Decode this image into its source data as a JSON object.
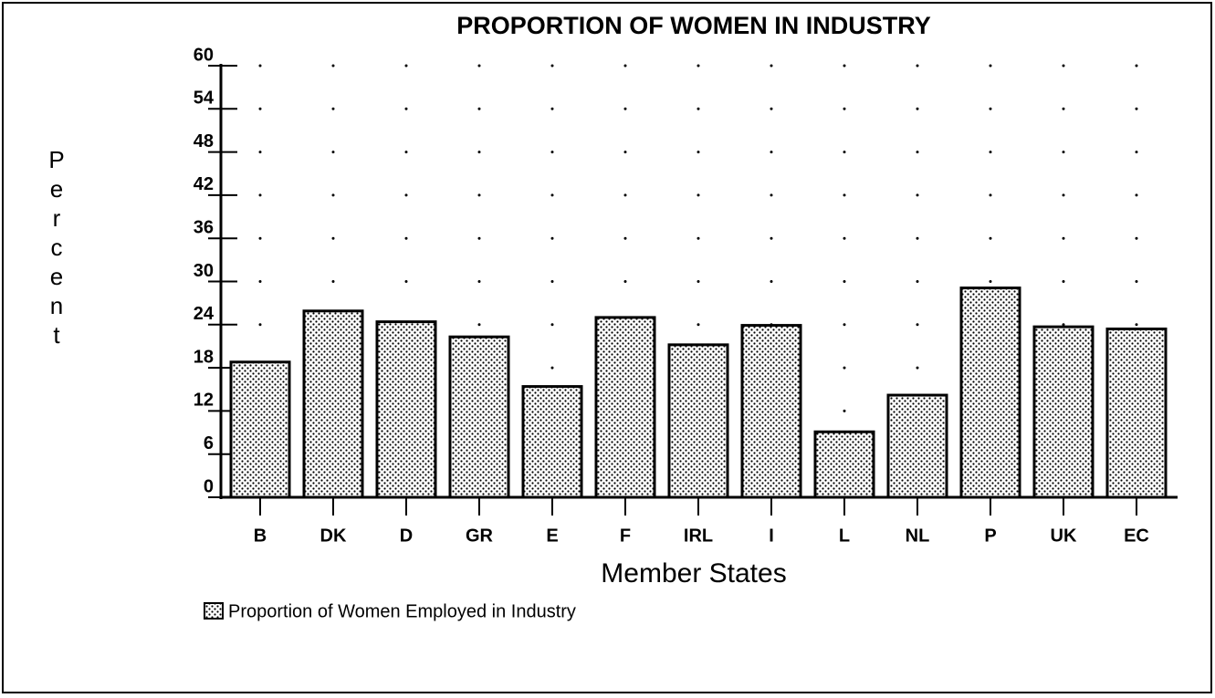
{
  "chart_data": {
    "type": "bar",
    "title": "PROPORTION OF WOMEN IN INDUSTRY",
    "x_label": "Member States",
    "y_label": "Percent",
    "categories": [
      "B",
      "DK",
      "D",
      "GR",
      "E",
      "F",
      "IRL",
      "I",
      "L",
      "NL",
      "P",
      "UK",
      "EC"
    ],
    "series": [
      {
        "name": "Proportion of Women Employed in Industry",
        "color": "#000000",
        "values": [
          18.8,
          25.9,
          24.4,
          22.3,
          15.4,
          25.0,
          21.2,
          23.9,
          9.1,
          14.2,
          29.1,
          23.7,
          23.4
        ]
      }
    ],
    "ylim": [
      0,
      60
    ],
    "yticks": [
      0,
      6,
      12,
      18,
      24,
      30,
      36,
      42,
      48,
      54,
      60
    ],
    "grid": "dotted",
    "legend": "bottom-left"
  }
}
